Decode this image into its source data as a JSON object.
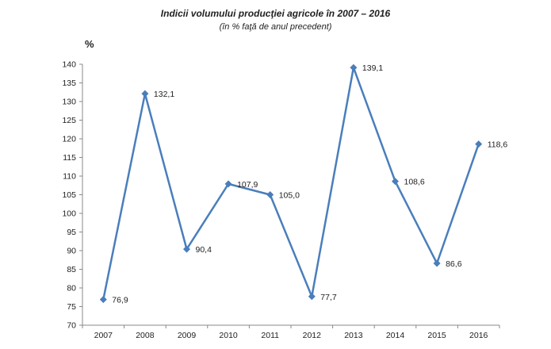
{
  "chart_data": {
    "type": "line",
    "title": "Indicii volumului producţiei agricole în 2007 – 2016",
    "subtitle": "(în % faţă de anul precedent)",
    "ylabel": "%",
    "xlabel": "",
    "categories": [
      "2007",
      "2008",
      "2009",
      "2010",
      "2011",
      "2012",
      "2013",
      "2014",
      "2015",
      "2016"
    ],
    "series": [
      {
        "values": [
          76.9,
          132.1,
          90.4,
          107.9,
          105.0,
          77.7,
          139.1,
          108.6,
          86.6,
          118.6
        ],
        "labels": [
          "76,9",
          "132,1",
          "90,4",
          "107,9",
          "105,0",
          "77,7",
          "139,1",
          "108,6",
          "86,6",
          "118,6"
        ],
        "color": "#4a7ebb",
        "marker": "diamond"
      }
    ],
    "ylim": [
      70,
      140
    ],
    "yticks": [
      "70",
      "75",
      "80",
      "85",
      "90",
      "95",
      "100",
      "105",
      "110",
      "115",
      "120",
      "125",
      "130",
      "135",
      "140"
    ],
    "grid": false,
    "legend": "none"
  }
}
